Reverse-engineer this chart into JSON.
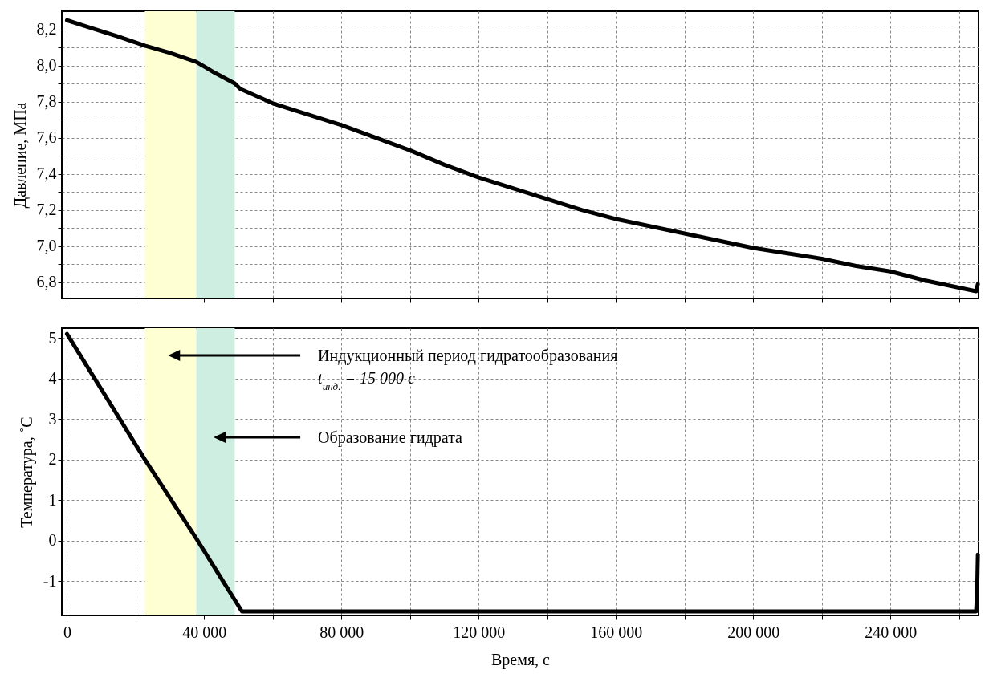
{
  "chart_data": [
    {
      "type": "line",
      "ylabel": "Давление, МПа",
      "xlim": [
        -1500,
        265700
      ],
      "ylim": [
        6.71,
        8.3
      ],
      "grid": true,
      "tick_labels": "y",
      "xticks": [
        {
          "value": 0,
          "label": null
        },
        {
          "value": 20000,
          "label": null
        },
        {
          "value": 40000,
          "label": null
        },
        {
          "value": 60000,
          "label": null
        },
        {
          "value": 80000,
          "label": null
        },
        {
          "value": 100000,
          "label": null
        },
        {
          "value": 120000,
          "label": null
        },
        {
          "value": 140000,
          "label": null
        },
        {
          "value": 160000,
          "label": null
        },
        {
          "value": 180000,
          "label": null
        },
        {
          "value": 200000,
          "label": null
        },
        {
          "value": 220000,
          "label": null
        },
        {
          "value": 240000,
          "label": null
        },
        {
          "value": 260000,
          "label": null
        }
      ],
      "yticks": [
        {
          "value": 6.8,
          "label": "6,8"
        },
        {
          "value": 6.9,
          "label": null
        },
        {
          "value": 7.0,
          "label": "7,0"
        },
        {
          "value": 7.1,
          "label": null
        },
        {
          "value": 7.2,
          "label": "7,2"
        },
        {
          "value": 7.3,
          "label": null
        },
        {
          "value": 7.4,
          "label": "7,4"
        },
        {
          "value": 7.5,
          "label": null
        },
        {
          "value": 7.6,
          "label": "7,6"
        },
        {
          "value": 7.7,
          "label": null
        },
        {
          "value": 7.8,
          "label": "7,8"
        },
        {
          "value": 7.9,
          "label": null
        },
        {
          "value": 8.0,
          "label": "8,0"
        },
        {
          "value": 8.1,
          "label": null
        },
        {
          "value": 8.2,
          "label": "8,2"
        }
      ],
      "bands": [
        {
          "axis": "x",
          "from": 22700,
          "to": 37700,
          "color": "#ffffd4"
        },
        {
          "axis": "x",
          "from": 37700,
          "to": 48900,
          "color": "#cdeee0"
        }
      ],
      "series": [
        {
          "color": "#000000",
          "x": [
            0,
            5000,
            10000,
            15000,
            22700,
            30000,
            37700,
            43000,
            48900,
            50500,
            60000,
            70000,
            80000,
            90000,
            100000,
            110000,
            120000,
            130000,
            140000,
            150000,
            160000,
            170000,
            180000,
            190000,
            200000,
            210000,
            220000,
            230000,
            240000,
            250000,
            260000,
            265000,
            265500
          ],
          "values": [
            8.25,
            8.22,
            8.19,
            8.16,
            8.11,
            8.07,
            8.02,
            7.96,
            7.9,
            7.87,
            7.79,
            7.73,
            7.67,
            7.6,
            7.53,
            7.45,
            7.38,
            7.32,
            7.26,
            7.2,
            7.15,
            7.11,
            7.07,
            7.03,
            6.99,
            6.96,
            6.93,
            6.89,
            6.86,
            6.81,
            6.77,
            6.75,
            6.79
          ]
        }
      ]
    },
    {
      "type": "line",
      "xlabel": "Время, с",
      "ylabel": "Температура, ˚С",
      "xlim": [
        -1500,
        265700
      ],
      "ylim": [
        -1.85,
        5.24
      ],
      "grid": true,
      "xticks": [
        0,
        {
          "value": 20000,
          "label": null
        },
        {
          "value": 40000,
          "label": "40 000"
        },
        {
          "value": 60000,
          "label": null
        },
        {
          "value": 80000,
          "label": "80 000"
        },
        {
          "value": 100000,
          "label": null
        },
        {
          "value": 120000,
          "label": "120 000"
        },
        {
          "value": 140000,
          "label": null
        },
        {
          "value": 160000,
          "label": "160 000"
        },
        {
          "value": 180000,
          "label": null
        },
        {
          "value": 200000,
          "label": "200 000"
        },
        {
          "value": 220000,
          "label": null
        },
        {
          "value": 240000,
          "label": "240 000"
        },
        {
          "value": 260000,
          "label": null
        }
      ],
      "yticks": [
        -1,
        0,
        1,
        2,
        3,
        4,
        5
      ],
      "bands": [
        {
          "axis": "x",
          "from": 22700,
          "to": 37700,
          "color": "#ffffd4"
        },
        {
          "axis": "x",
          "from": 37700,
          "to": 48900,
          "color": "#cdeee0"
        }
      ],
      "series": [
        {
          "color": "#000000",
          "x": [
            0,
            22700,
            37700,
            51000,
            265000,
            265300,
            265500
          ],
          "values": [
            5.1,
            2.0,
            0.05,
            -1.75,
            -1.75,
            -1.2,
            -0.35
          ]
        }
      ],
      "annotations": [
        "Индукционный период гидратообразования\nt$_{инд.}$ = 15 000 с",
        "Образование гидрата"
      ]
    }
  ]
}
